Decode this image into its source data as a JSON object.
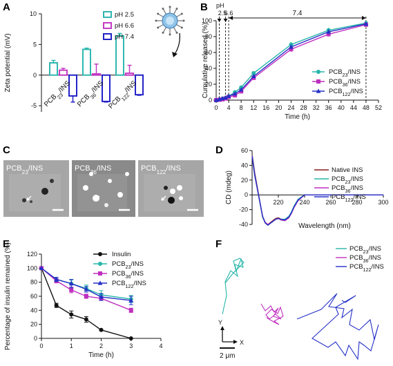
{
  "figure": {
    "panels": {
      "A": "A",
      "B": "B",
      "C": "C",
      "D": "D",
      "E": "E",
      "F": "F"
    }
  },
  "colors": {
    "pH25": "#2fb7b0",
    "pH66": "#c43bc4",
    "pH74": "#2222c8",
    "PCB23": "#26b5a9",
    "PCB36": "#bf2fbf",
    "PCB122": "#2430c6",
    "Native": "#8b1a1a",
    "Insulin": "#111111"
  },
  "chart_data": [
    {
      "panel": "A",
      "type": "bar",
      "ylabel": "Zeta potential (mV)",
      "ylim": [
        -6,
        10
      ],
      "yticks": [
        -5,
        0,
        5,
        10
      ],
      "categories": [
        "PCB23/INS",
        "PCB36/INS",
        "PCB122/INS"
      ],
      "category_labels": [
        {
          "base": "PCB",
          "sub": "23",
          "rest": "/INS"
        },
        {
          "base": "PCB",
          "sub": "36",
          "rest": "/INS"
        },
        {
          "base": "PCB",
          "sub": "122",
          "rest": "/INS"
        }
      ],
      "series": [
        {
          "name": "pH 2.5",
          "values": [
            2.0,
            4.2,
            6.4
          ],
          "errors": [
            0.4,
            0.2,
            0.4
          ],
          "color_key": "pH25"
        },
        {
          "name": "pH 6.6",
          "values": [
            0.8,
            0.2,
            0.3
          ],
          "errors": [
            0.3,
            1.6,
            1.3
          ],
          "color_key": "pH66"
        },
        {
          "name": "pH 7.4",
          "values": [
            -3.4,
            -4.3,
            -3.2
          ],
          "errors": [
            1.0,
            0.1,
            0.1
          ],
          "color_key": "pH74"
        }
      ],
      "legend": [
        "pH 2.5",
        "pH 6.6",
        "pH 7.4"
      ],
      "legend_placement": "top-right"
    },
    {
      "panel": "B",
      "type": "line",
      "xlabel": "Time (h)",
      "ylabel": "Cumulative released (%)",
      "xlim": [
        0,
        52
      ],
      "ylim": [
        0,
        100
      ],
      "xticks": [
        0,
        4,
        8,
        12,
        16,
        20,
        24,
        28,
        32,
        36,
        40,
        44,
        48,
        52
      ],
      "yticks": [
        0,
        20,
        40,
        60,
        80,
        100
      ],
      "annotations": {
        "ph_label": "pH",
        "ph_values": [
          "2.5",
          "6.6"
        ],
        "ph_values_x": [
          2,
          4
        ],
        "phase_label": "7.4",
        "dashed_lines_x": [
          1,
          3,
          4,
          48
        ]
      },
      "x": [
        0,
        1,
        2,
        3,
        4,
        6,
        8,
        12,
        24,
        36,
        48
      ],
      "series": [
        {
          "name": "PCB23/INS",
          "label": {
            "base": "PCB",
            "sub": "23",
            "rest": "/INS"
          },
          "marker": "circle",
          "color_key": "PCB23",
          "values": [
            0,
            1,
            2,
            3,
            5,
            10,
            16,
            34,
            70,
            88,
            97
          ],
          "errors": [
            0,
            0.5,
            0.5,
            0.5,
            1,
            1.5,
            2,
            2,
            3,
            3,
            2
          ]
        },
        {
          "name": "PCB36/INS",
          "label": {
            "base": "PCB",
            "sub": "36",
            "rest": "/INS"
          },
          "marker": "square",
          "color_key": "PCB36",
          "values": [
            0,
            0.5,
            1,
            2,
            4,
            6,
            11,
            28,
            64,
            83,
            95
          ],
          "errors": [
            0,
            0.5,
            0.5,
            0.5,
            1,
            1,
            1.5,
            2,
            3,
            3,
            2
          ]
        },
        {
          "name": "PCB122/INS",
          "label": {
            "base": "PCB",
            "sub": "122",
            "rest": "/INS"
          },
          "marker": "triangle",
          "color_key": "PCB122",
          "values": [
            0,
            1,
            2,
            3,
            5,
            8,
            13,
            30,
            67,
            86,
            96
          ],
          "errors": [
            0,
            0.5,
            0.5,
            0.5,
            1,
            1,
            1.5,
            2,
            3,
            3,
            2
          ]
        }
      ],
      "legend_placement": "bottom-right"
    },
    {
      "panel": "D",
      "type": "line",
      "xlabel": "Wavelength (nm)",
      "ylabel": "CD (mdeg)",
      "xlim": [
        200,
        300
      ],
      "ylim": [
        -40,
        60
      ],
      "xticks": [
        220,
        240,
        260,
        280,
        300
      ],
      "yticks": [
        -40,
        -20,
        0,
        20,
        40,
        60
      ],
      "x": [
        200,
        202,
        205,
        208,
        210,
        212,
        215,
        218,
        220,
        222,
        225,
        228,
        230,
        232,
        235,
        240,
        245,
        250,
        260,
        280,
        300
      ],
      "series": [
        {
          "name": "Native INS",
          "label": {
            "base": "Native INS",
            "sub": "",
            "rest": ""
          },
          "color_key": "Native",
          "values": [
            55,
            30,
            0,
            -30,
            -38,
            -40,
            -36,
            -32,
            -31,
            -33,
            -34,
            -30,
            -24,
            -16,
            -7,
            0,
            0,
            0,
            0,
            0,
            0
          ]
        },
        {
          "name": "PCB23/INS",
          "label": {
            "base": "PCB",
            "sub": "23",
            "rest": "/INS"
          },
          "color_key": "PCB23",
          "values": [
            54,
            28,
            -2,
            -30,
            -38,
            -41,
            -37,
            -33,
            -32,
            -33,
            -33,
            -29,
            -23,
            -15,
            -6,
            0,
            0,
            0,
            0,
            0,
            0
          ]
        },
        {
          "name": "PCB36/INS",
          "label": {
            "base": "PCB",
            "sub": "36",
            "rest": "/INS"
          },
          "color_key": "PCB36",
          "values": [
            53,
            27,
            -1,
            -29,
            -37,
            -40,
            -37,
            -33,
            -32,
            -34,
            -35,
            -31,
            -25,
            -17,
            -8,
            0,
            0,
            0,
            0,
            0,
            0
          ]
        },
        {
          "name": "PCB122/INS",
          "label": {
            "base": "PCB",
            "sub": "122",
            "rest": "/INS"
          },
          "color_key": "PCB122",
          "values": [
            52,
            26,
            -1,
            -29,
            -38,
            -41,
            -37,
            -33,
            -32,
            -33,
            -34,
            -30,
            -24,
            -16,
            -7,
            0,
            0,
            0,
            0,
            0,
            0
          ]
        }
      ],
      "legend_placement": "top-right"
    },
    {
      "panel": "E",
      "type": "line",
      "xlabel": "Time (h)",
      "ylabel": "Percentage of insulin remained (%)",
      "xlim": [
        0,
        4
      ],
      "ylim": [
        0,
        120
      ],
      "xticks": [
        0,
        1,
        2,
        3,
        4
      ],
      "yticks": [
        0,
        20,
        40,
        60,
        80,
        100,
        120
      ],
      "x": [
        0,
        0.5,
        1,
        1.5,
        2,
        3
      ],
      "series": [
        {
          "name": "Insulin",
          "label": {
            "base": "Insulin",
            "sub": "",
            "rest": ""
          },
          "marker": "circle",
          "color_key": "Insulin",
          "values": [
            100,
            47,
            34,
            27,
            12,
            0
          ],
          "errors": [
            0,
            3,
            5,
            4,
            1,
            0
          ]
        },
        {
          "name": "PCB23/INS",
          "label": {
            "base": "PCB",
            "sub": "23",
            "rest": "/INS"
          },
          "marker": "circle",
          "color_key": "PCB23",
          "values": [
            100,
            84,
            78,
            71,
            62,
            56
          ],
          "errors": [
            0,
            3,
            5,
            5,
            6,
            5
          ]
        },
        {
          "name": "PCB36/INS",
          "label": {
            "base": "PCB",
            "sub": "36",
            "rest": "/INS"
          },
          "marker": "square",
          "color_key": "PCB36",
          "values": [
            100,
            82,
            69,
            60,
            57,
            40
          ],
          "errors": [
            0,
            3,
            4,
            3,
            3,
            3
          ]
        },
        {
          "name": "PCB122/INS",
          "label": {
            "base": "PCB",
            "sub": "122",
            "rest": "/INS"
          },
          "marker": "triangle",
          "color_key": "PCB122",
          "values": [
            100,
            84,
            78,
            70,
            59,
            54
          ],
          "errors": [
            0,
            3,
            6,
            4,
            5,
            6
          ]
        }
      ],
      "legend_placement": "top-right"
    }
  ],
  "panel_C": {
    "images": [
      {
        "label": {
          "base": "PCB",
          "sub": "23",
          "rest": "/INS"
        }
      },
      {
        "label": {
          "base": "PCB",
          "sub": "36",
          "rest": "/INS"
        }
      },
      {
        "label": {
          "base": "PCB",
          "sub": "122",
          "rest": "/INS"
        }
      }
    ]
  },
  "panel_F": {
    "legend": [
      {
        "label": {
          "base": "PCB",
          "sub": "23",
          "rest": "/INS"
        },
        "color_key": "PCB23"
      },
      {
        "label": {
          "base": "PCB",
          "sub": "36",
          "rest": "/INS"
        },
        "color_key": "PCB36"
      },
      {
        "label": {
          "base": "PCB",
          "sub": "122",
          "rest": "/INS"
        },
        "color_key": "PCB122"
      }
    ],
    "axis_x": "X",
    "axis_y": "Y",
    "scale_label": "2 μm"
  }
}
